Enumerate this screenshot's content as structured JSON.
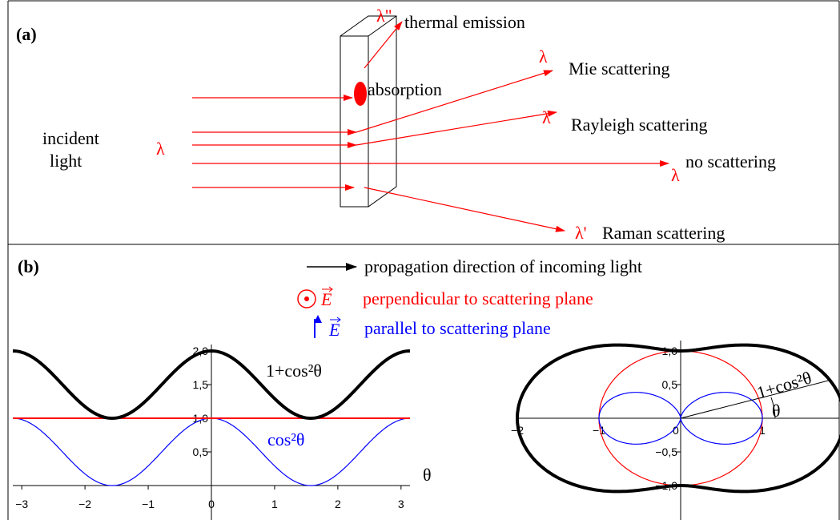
{
  "panel_a": {
    "label": "(a)",
    "incident": [
      "incident",
      "light"
    ],
    "incident_lambda": "λ",
    "absorption": "absorption",
    "thermal_lambda": "λ\"",
    "thermal": "thermal emission",
    "mie_lambda": "λ",
    "mie": "Mie scattering",
    "rayleigh_lambda": "λ",
    "rayleigh": "Rayleigh scattering",
    "none_lambda": "λ",
    "none": "no scattering",
    "raman_lambda": "λ'",
    "raman": "Raman scattering"
  },
  "panel_b": {
    "label": "(b)",
    "legend": {
      "propagation": "propagation direction of incoming light",
      "perp_symbol": "E",
      "perpendicular": "perpendicular to scattering plane",
      "par_symbol": "E",
      "parallel": "parallel to scattering plane"
    },
    "cartesian": {
      "xlim": [
        -3.14159,
        3.14159
      ],
      "ylim": [
        0,
        2
      ],
      "xticks": [
        {
          "value": -3,
          "label": "−3"
        },
        {
          "value": -2,
          "label": "−2"
        },
        {
          "value": -1,
          "label": "−1"
        },
        0,
        1,
        2,
        3
      ],
      "yticks": [
        {
          "value": 0.5,
          "label": "0,5"
        },
        {
          "value": 1,
          "label": "1,0"
        },
        {
          "value": 1.5,
          "label": "1,5"
        },
        {
          "value": 2,
          "label": "2,0"
        }
      ],
      "total_label": "1+cos²θ",
      "parallel_label": "cos²θ",
      "x_label": "θ"
    },
    "polar": {
      "xlim": [
        -2,
        2
      ],
      "ylim": [
        -1,
        1
      ],
      "xticks": [
        {
          "value": -2,
          "label": "−2"
        },
        {
          "value": -1,
          "label": "−1"
        },
        1
      ],
      "yticks": [
        {
          "value": -1,
          "label": "−1,0"
        },
        {
          "value": -0.5,
          "label": "−0,5"
        },
        {
          "value": 0.5,
          "label": "0,5"
        },
        {
          "value": 1,
          "label": "1,0"
        }
      ],
      "origin_label": "0",
      "radius_label": "1+cos²θ",
      "angle_label": "θ"
    }
  }
}
